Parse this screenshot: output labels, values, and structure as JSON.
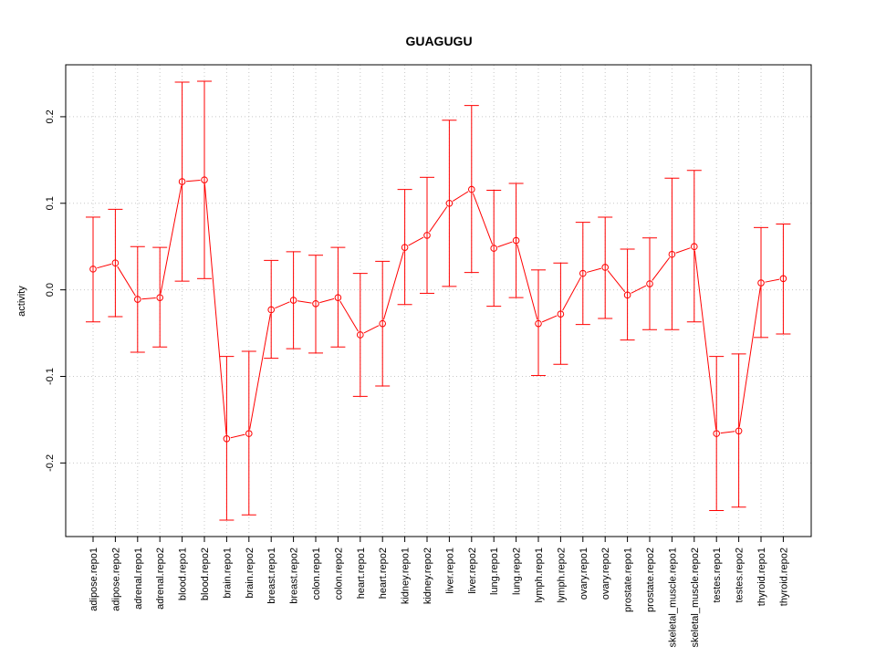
{
  "chart_data": {
    "type": "line",
    "title": "GUAGUGU",
    "xlabel": "",
    "ylabel": "activity",
    "ylim": [
      -0.285,
      0.26
    ],
    "y_ticks": [
      -0.2,
      -0.1,
      0.0,
      0.1,
      0.2
    ],
    "y_tick_labels": [
      "-0.2",
      "-0.1",
      "0.0",
      "0.1",
      "0.2"
    ],
    "grid": true,
    "legend": "none",
    "colors": {
      "series": "#ff0000",
      "grid": "#c8c8c8",
      "axis": "#000000"
    },
    "categories": [
      "adipose.repo1",
      "adipose.repo2",
      "adrenal.repo1",
      "adrenal.repo2",
      "blood.repo1",
      "blood.repo2",
      "brain.repo1",
      "brain.repo2",
      "breast.repo1",
      "breast.repo2",
      "colon.repo1",
      "colon.repo2",
      "heart.repo1",
      "heart.repo2",
      "kidney.repo1",
      "kidney.repo2",
      "liver.repo1",
      "liver.repo2",
      "lung.repo1",
      "lung.repo2",
      "lymph.repo1",
      "lymph.repo2",
      "ovary.repo1",
      "ovary.repo2",
      "prostate.repo1",
      "prostate.repo2",
      "skeletal_muscle.repo1",
      "skeletal_muscle.repo2",
      "testes.repo1",
      "testes.repo2",
      "thyroid.repo1",
      "thyroid.repo2"
    ],
    "series": [
      {
        "values": [
          0.024,
          0.031,
          -0.011,
          -0.009,
          0.125,
          0.127,
          -0.172,
          -0.166,
          -0.023,
          -0.012,
          -0.016,
          -0.009,
          -0.052,
          -0.039,
          0.049,
          0.063,
          0.1,
          0.116,
          0.048,
          0.057,
          -0.039,
          -0.028,
          0.019,
          0.026,
          -0.006,
          0.007,
          0.041,
          0.05,
          -0.166,
          -0.163,
          0.008,
          0.013
        ],
        "lower": [
          -0.037,
          -0.031,
          -0.072,
          -0.066,
          0.01,
          0.013,
          -0.266,
          -0.26,
          -0.079,
          -0.068,
          -0.073,
          -0.066,
          -0.123,
          -0.111,
          -0.017,
          -0.004,
          0.004,
          0.02,
          -0.019,
          -0.009,
          -0.099,
          -0.086,
          -0.04,
          -0.033,
          -0.058,
          -0.046,
          -0.046,
          -0.037,
          -0.255,
          -0.251,
          -0.055,
          -0.051
        ],
        "upper": [
          0.084,
          0.093,
          0.05,
          0.049,
          0.24,
          0.241,
          -0.077,
          -0.071,
          0.034,
          0.044,
          0.04,
          0.049,
          0.019,
          0.033,
          0.116,
          0.13,
          0.196,
          0.213,
          0.115,
          0.123,
          0.023,
          0.031,
          0.078,
          0.084,
          0.047,
          0.06,
          0.129,
          0.138,
          -0.077,
          -0.074,
          0.072,
          0.076
        ]
      }
    ]
  }
}
